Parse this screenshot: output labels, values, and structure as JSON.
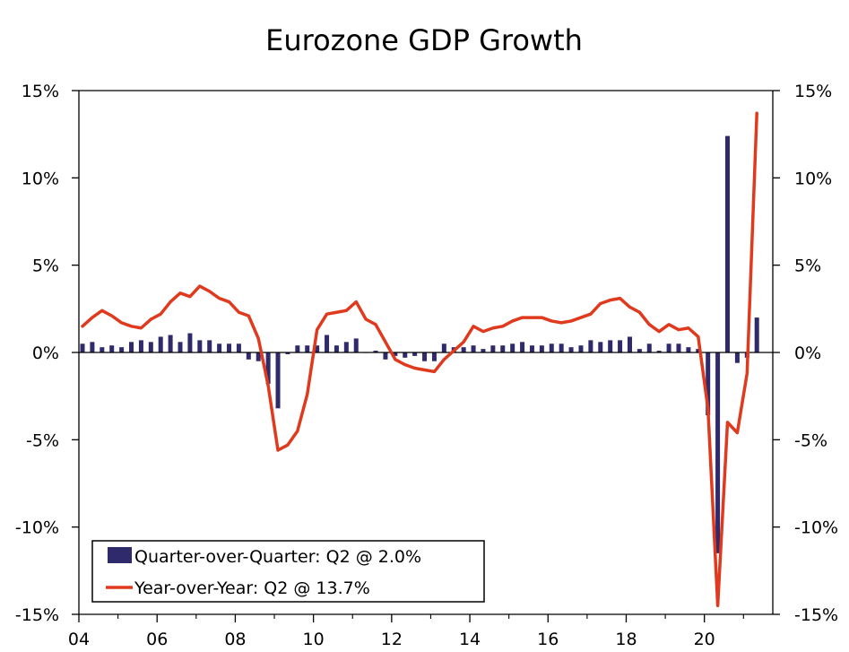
{
  "chart_data": {
    "type": "bar+line",
    "title": "Eurozone GDP Growth",
    "ylim": [
      -15,
      15
    ],
    "y_ticks": [
      15,
      10,
      5,
      0,
      -5,
      -10,
      -15
    ],
    "y_tick_labels_left": [
      "15%",
      "10%",
      "5%",
      "0%",
      "-5%",
      "-10%",
      "-15%"
    ],
    "y_tick_labels_right": [
      "15%",
      "10%",
      "5%",
      "0%",
      "-5%",
      "-10%",
      "-15%"
    ],
    "x_range": [
      2004.0,
      2021.75
    ],
    "x_ticks": [
      2004,
      2006,
      2008,
      2010,
      2012,
      2014,
      2016,
      2018,
      2020
    ],
    "x_tick_labels": [
      "04",
      "06",
      "08",
      "10",
      "12",
      "14",
      "16",
      "18",
      "20"
    ],
    "colors": {
      "bars": "#2e2a6b",
      "line": "#e03a1e",
      "axis": "#000000",
      "frame": "#000000"
    },
    "series": [
      {
        "name": "Quarter-over-Quarter",
        "type": "bar",
        "legend_label": "Quarter-over-Quarter: Q2 @ 2.0%",
        "x": [
          2004.0,
          2004.25,
          2004.5,
          2004.75,
          2005.0,
          2005.25,
          2005.5,
          2005.75,
          2006.0,
          2006.25,
          2006.5,
          2006.75,
          2007.0,
          2007.25,
          2007.5,
          2007.75,
          2008.0,
          2008.25,
          2008.5,
          2008.75,
          2009.0,
          2009.25,
          2009.5,
          2009.75,
          2010.0,
          2010.25,
          2010.5,
          2010.75,
          2011.0,
          2011.25,
          2011.5,
          2011.75,
          2012.0,
          2012.25,
          2012.5,
          2012.75,
          2013.0,
          2013.25,
          2013.5,
          2013.75,
          2014.0,
          2014.25,
          2014.5,
          2014.75,
          2015.0,
          2015.25,
          2015.5,
          2015.75,
          2016.0,
          2016.25,
          2016.5,
          2016.75,
          2017.0,
          2017.25,
          2017.5,
          2017.75,
          2018.0,
          2018.25,
          2018.5,
          2018.75,
          2019.0,
          2019.25,
          2019.5,
          2019.75,
          2020.0,
          2020.25,
          2020.5,
          2020.75,
          2021.0,
          2021.25
        ],
        "values": [
          0.5,
          0.6,
          0.3,
          0.4,
          0.3,
          0.6,
          0.7,
          0.6,
          0.9,
          1.0,
          0.6,
          1.1,
          0.7,
          0.7,
          0.5,
          0.5,
          0.5,
          -0.4,
          -0.5,
          -1.8,
          -3.2,
          -0.1,
          0.4,
          0.4,
          0.4,
          1.0,
          0.4,
          0.6,
          0.8,
          0.0,
          0.1,
          -0.4,
          -0.2,
          -0.3,
          -0.2,
          -0.5,
          -0.5,
          0.5,
          0.3,
          0.3,
          0.4,
          0.2,
          0.4,
          0.4,
          0.5,
          0.6,
          0.4,
          0.4,
          0.5,
          0.5,
          0.3,
          0.4,
          0.7,
          0.6,
          0.7,
          0.7,
          0.9,
          0.2,
          0.5,
          0.1,
          0.5,
          0.5,
          0.3,
          0.2,
          -3.6,
          -11.5,
          12.4,
          -0.6,
          -0.3,
          2.0
        ]
      },
      {
        "name": "Year-over-Year",
        "type": "line",
        "legend_label": "Year-over-Year: Q2 @ 13.7%",
        "x": [
          2004.0,
          2004.25,
          2004.5,
          2004.75,
          2005.0,
          2005.25,
          2005.5,
          2005.75,
          2006.0,
          2006.25,
          2006.5,
          2006.75,
          2007.0,
          2007.25,
          2007.5,
          2007.75,
          2008.0,
          2008.25,
          2008.5,
          2008.75,
          2009.0,
          2009.25,
          2009.5,
          2009.75,
          2010.0,
          2010.25,
          2010.5,
          2010.75,
          2011.0,
          2011.25,
          2011.5,
          2011.75,
          2012.0,
          2012.25,
          2012.5,
          2012.75,
          2013.0,
          2013.25,
          2013.5,
          2013.75,
          2014.0,
          2014.25,
          2014.5,
          2014.75,
          2015.0,
          2015.25,
          2015.5,
          2015.75,
          2016.0,
          2016.25,
          2016.5,
          2016.75,
          2017.0,
          2017.25,
          2017.5,
          2017.75,
          2018.0,
          2018.25,
          2018.5,
          2018.75,
          2019.0,
          2019.25,
          2019.5,
          2019.75,
          2020.0,
          2020.25,
          2020.5,
          2020.75,
          2021.0,
          2021.25
        ],
        "values": [
          1.5,
          2.0,
          2.4,
          2.1,
          1.7,
          1.5,
          1.4,
          1.9,
          2.2,
          2.9,
          3.4,
          3.2,
          3.8,
          3.5,
          3.1,
          2.9,
          2.3,
          2.1,
          0.8,
          -1.9,
          -5.6,
          -5.3,
          -4.5,
          -2.4,
          1.3,
          2.2,
          2.3,
          2.4,
          2.9,
          1.9,
          1.6,
          0.6,
          -0.4,
          -0.7,
          -0.9,
          -1.0,
          -1.1,
          -0.4,
          0.1,
          0.6,
          1.5,
          1.2,
          1.4,
          1.5,
          1.8,
          2.0,
          2.0,
          2.0,
          1.8,
          1.7,
          1.8,
          2.0,
          2.2,
          2.8,
          3.0,
          3.1,
          2.6,
          2.3,
          1.6,
          1.2,
          1.6,
          1.3,
          1.4,
          0.9,
          -3.2,
          -14.5,
          -4.0,
          -4.6,
          -1.2,
          13.7
        ]
      }
    ],
    "legend_position": "bottom-left"
  }
}
